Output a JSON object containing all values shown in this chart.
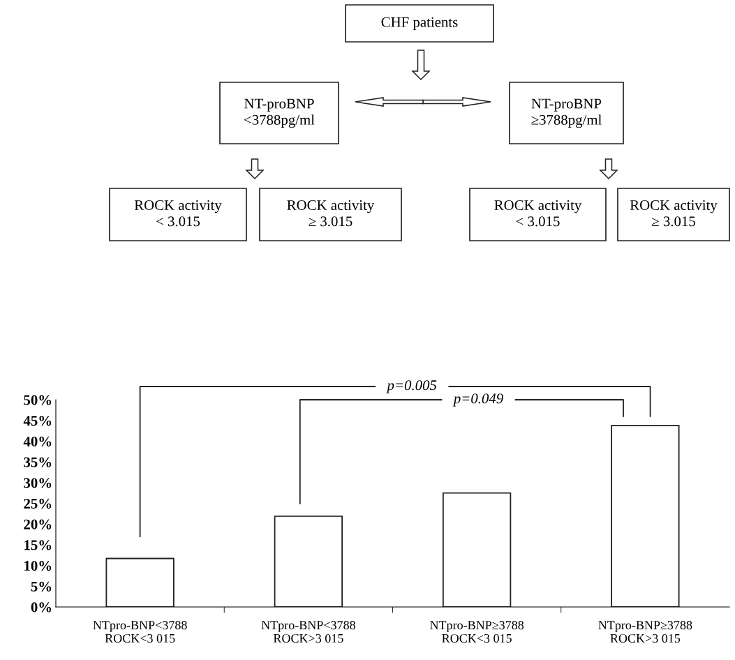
{
  "chart_data": [
    {
      "type": "other",
      "annotations": [
        "CHF patients",
        "NT-proBNP\n<3788pg/ml",
        "NT-proBNP\n≥3788pg/ml",
        "ROCK activity\n< 3.015",
        "ROCK activity\n≥ 3.015",
        "ROCK activity\n< 3.015",
        "ROCK activity\n≥ 3.015"
      ]
    },
    {
      "type": "bar",
      "categories": [
        "NTpro-BNP<3788\nROCK<3 015",
        "NTpro-BNP<3788\nROCK>3 015",
        "NTpro-BNP≥3788\nROCK<3 015",
        "NTpro-BNP≥3788\nROCK>3 015"
      ],
      "values": [
        11.7,
        21.9,
        27.5,
        43.8
      ],
      "color": "#ffffff",
      "ylim": [
        0,
        50
      ],
      "yticks": [
        {
          "value": 0,
          "label": "0%"
        },
        {
          "value": 5,
          "label": "5%"
        },
        {
          "value": 10,
          "label": "10%"
        },
        {
          "value": 15,
          "label": "15%"
        },
        {
          "value": 20,
          "label": "20%"
        },
        {
          "value": 25,
          "label": "25%"
        },
        {
          "value": 30,
          "label": "30%"
        },
        {
          "value": 35,
          "label": "35%"
        },
        {
          "value": 40,
          "label": "40%"
        },
        {
          "value": 45,
          "label": "45%"
        },
        {
          "value": 50,
          "label": "50%"
        }
      ],
      "grid": false,
      "annotations": [
        "p=0.005",
        "p=0.049"
      ]
    }
  ]
}
